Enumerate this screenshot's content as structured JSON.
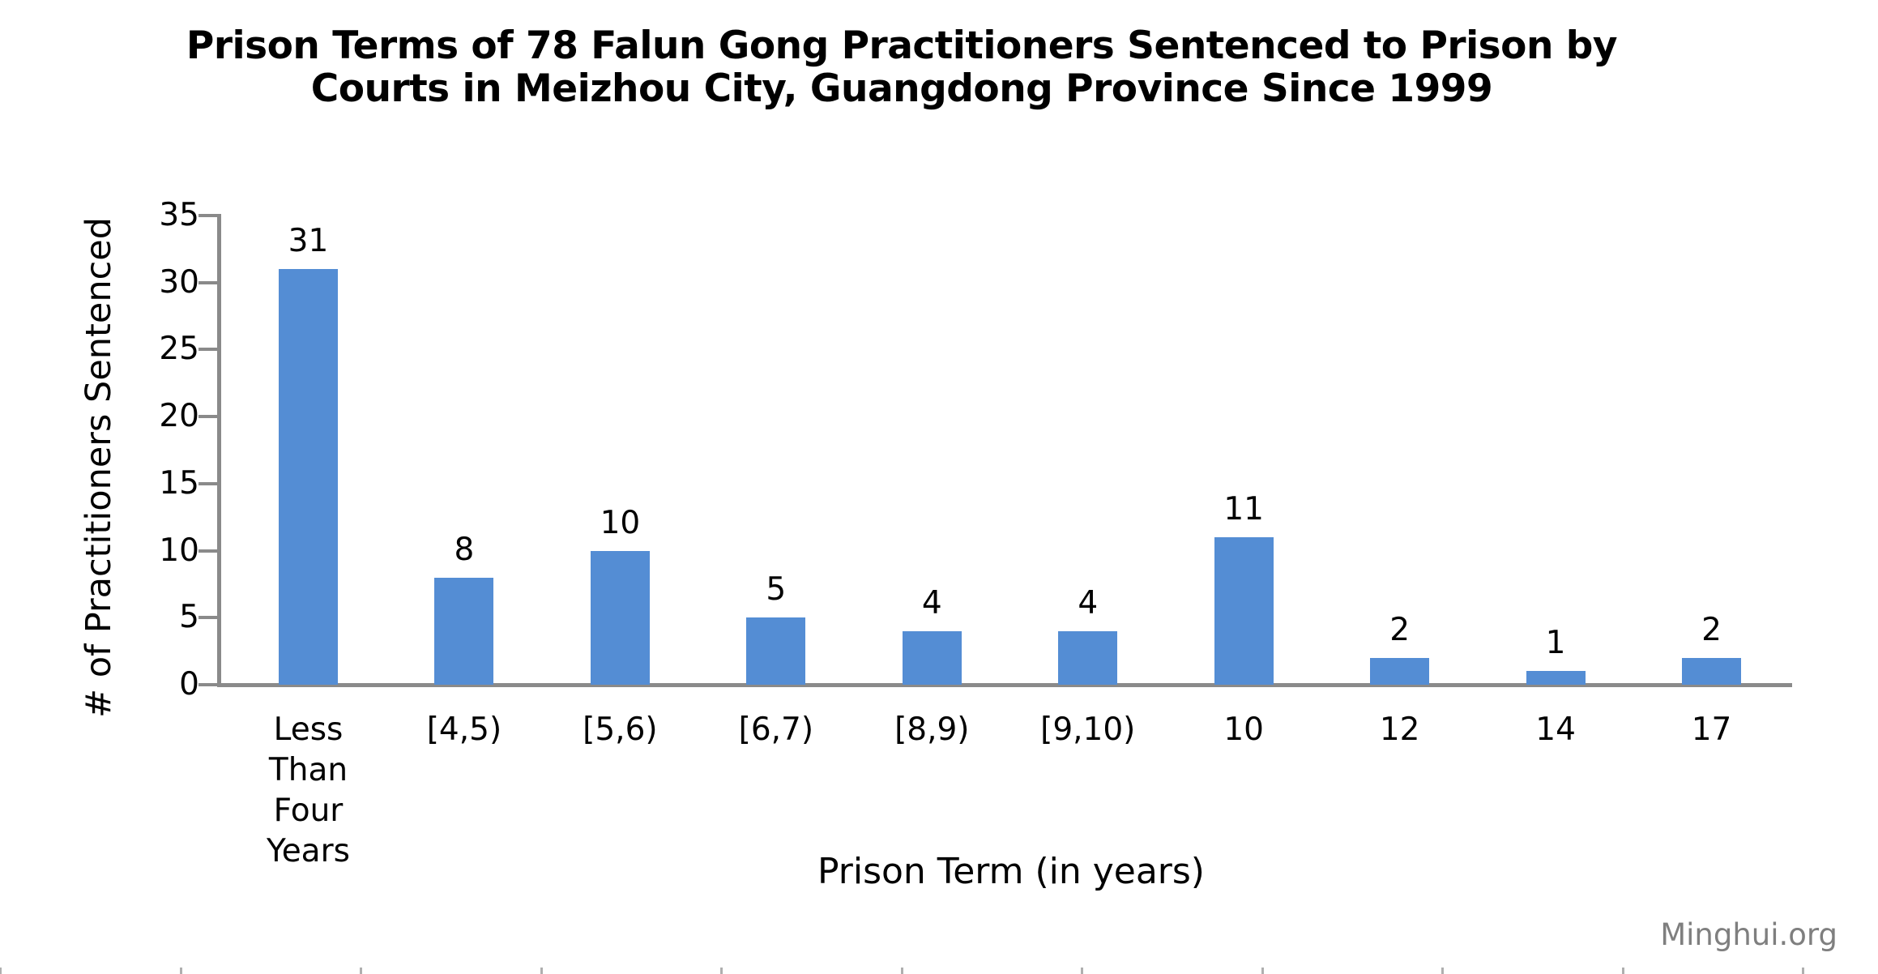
{
  "chart_data": {
    "type": "bar",
    "title": "Prison Terms of 78 Falun Gong Practitioners Sentenced to Prison by Courts in Meizhou City, Guangdong Province Since 1999",
    "title_lines": [
      "Prison Terms of 78 Falun Gong Practitioners Sentenced to Prison by",
      "Courts in Meizhou City, Guangdong Province Since 1999"
    ],
    "categories": [
      "Less Than Four Years",
      "[4,5)",
      "[5,6)",
      "[6,7)",
      "[8,9)",
      "[9,10)",
      "10",
      "12",
      "14",
      "17"
    ],
    "values": [
      31,
      8,
      10,
      5,
      4,
      4,
      11,
      2,
      1,
      2
    ],
    "data_labels": [
      "31",
      "8",
      "10",
      "5",
      "4",
      "4",
      "11",
      "2",
      "1",
      "2"
    ],
    "xlabel": "Prison Term (in years)",
    "ylabel": "# of Practitioners Sentenced",
    "ylim": [
      0,
      35
    ],
    "yticks": [
      0,
      5,
      10,
      15,
      20,
      25,
      30,
      35
    ],
    "grid": false,
    "legend": "none",
    "colors": {
      "bar": "#548DD4",
      "axis": "#8A8A8A",
      "text": "#000000",
      "watermark": "#7F7F7F",
      "edge_ticks": "#AFAFAF"
    }
  },
  "watermark": {
    "label": "Minghui.org"
  }
}
